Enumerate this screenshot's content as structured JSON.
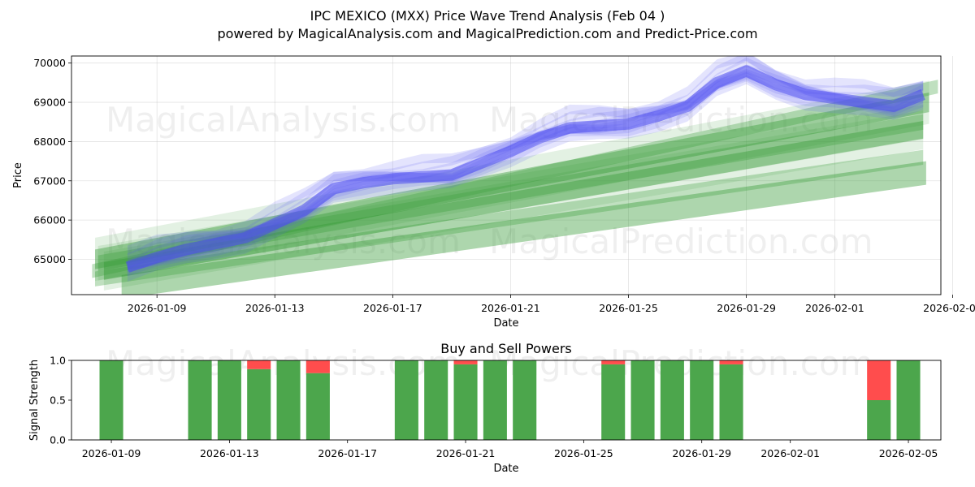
{
  "chart_data": [
    {
      "type": "area",
      "title": "IPC MEXICO (MXX) Price Wave Trend Analysis (Feb 04 )",
      "subtitle": "powered by MagicalAnalysis.com and MagicalPrediction.com and Predict-Price.com",
      "xlabel": "Date",
      "ylabel": "Price",
      "grid": true,
      "xlim_days": [
        -2.9,
        26.6
      ],
      "ylim": [
        64100,
        70180
      ],
      "x_origin": "2026-01-09",
      "x_ticks": [
        {
          "label": "2026-01-09",
          "day": 0
        },
        {
          "label": "2026-01-13",
          "day": 4
        },
        {
          "label": "2026-01-17",
          "day": 8
        },
        {
          "label": "2026-01-21",
          "day": 12
        },
        {
          "label": "2026-01-25",
          "day": 16
        },
        {
          "label": "2026-01-29",
          "day": 20
        },
        {
          "label": "2026-02-01",
          "day": 23
        },
        {
          "label": "2026-02-05",
          "day": 27
        }
      ],
      "y_ticks": [
        65000,
        66000,
        67000,
        68000,
        69000,
        70000
      ],
      "price_series": {
        "days": [
          -1,
          0,
          1,
          2,
          3,
          4,
          5,
          6,
          7,
          8,
          9,
          10,
          11,
          12,
          13,
          14,
          15,
          16,
          17,
          18,
          19,
          20,
          21,
          22,
          23,
          24,
          25,
          26
        ],
        "values": [
          64800,
          65050,
          65250,
          65400,
          65550,
          65900,
          66250,
          66800,
          66950,
          67050,
          67100,
          67150,
          67450,
          67750,
          68100,
          68350,
          68400,
          68450,
          68650,
          68900,
          69500,
          69800,
          69450,
          69200,
          69100,
          69000,
          68900,
          69200
        ]
      },
      "trend_bands": [
        {
          "start_day": -2.1,
          "start": 65000,
          "end_day": 26.2,
          "end": 69000,
          "width": 500
        },
        {
          "start_day": -2.0,
          "start": 64900,
          "end_day": 26.0,
          "end": 68500,
          "width": 400
        },
        {
          "start_day": -1.8,
          "start": 64700,
          "end_day": 26.0,
          "end": 68300,
          "width": 450
        },
        {
          "start_day": -2.1,
          "start": 64500,
          "end_day": 26.0,
          "end": 67600,
          "width": 380
        },
        {
          "start_day": -1.2,
          "start": 64300,
          "end_day": 26.1,
          "end": 67200,
          "width": 600
        },
        {
          "start_day": -2.2,
          "start": 64700,
          "end_day": 26.5,
          "end": 69400,
          "width": 350
        }
      ],
      "watermarks": [
        "MagicalAnalysis.com",
        "MagicalPrediction.com",
        "MagicalAnalysis.com",
        "MagicalPrediction.com"
      ]
    },
    {
      "type": "bar",
      "title": "Buy and Sell Powers",
      "xlabel": "Date",
      "ylabel": "Signal Strength",
      "ylim": [
        0,
        1.0
      ],
      "y_ticks": [
        "0.0",
        "0.5",
        "1.0"
      ],
      "xlim_days": [
        -1.35,
        28.1
      ],
      "x_ticks": [
        {
          "label": "2026-01-09",
          "day": 0
        },
        {
          "label": "2026-01-13",
          "day": 4
        },
        {
          "label": "2026-01-17",
          "day": 8
        },
        {
          "label": "2026-01-21",
          "day": 12
        },
        {
          "label": "2026-01-25",
          "day": 16
        },
        {
          "label": "2026-01-29",
          "day": 20
        },
        {
          "label": "2026-02-01",
          "day": 23
        },
        {
          "label": "2026-02-05",
          "day": 27
        }
      ],
      "buy_color": "#4ca64c",
      "sell_color": "#ff4d4d",
      "bars": [
        {
          "day": 0,
          "buy": 1.0,
          "sell": 0.0
        },
        {
          "day": 3,
          "buy": 1.0,
          "sell": 0.0
        },
        {
          "day": 4,
          "buy": 1.0,
          "sell": 0.0
        },
        {
          "day": 5,
          "buy": 0.89,
          "sell": 0.11
        },
        {
          "day": 6,
          "buy": 1.0,
          "sell": 0.0
        },
        {
          "day": 7,
          "buy": 0.84,
          "sell": 0.16
        },
        {
          "day": 10,
          "buy": 1.0,
          "sell": 0.0
        },
        {
          "day": 11,
          "buy": 1.0,
          "sell": 0.0
        },
        {
          "day": 12,
          "buy": 0.95,
          "sell": 0.05
        },
        {
          "day": 13,
          "buy": 1.0,
          "sell": 0.0
        },
        {
          "day": 14,
          "buy": 1.0,
          "sell": 0.0
        },
        {
          "day": 17,
          "buy": 0.95,
          "sell": 0.05
        },
        {
          "day": 18,
          "buy": 1.0,
          "sell": 0.0
        },
        {
          "day": 19,
          "buy": 1.0,
          "sell": 0.0
        },
        {
          "day": 20,
          "buy": 1.0,
          "sell": 0.0
        },
        {
          "day": 21,
          "buy": 0.95,
          "sell": 0.05
        },
        {
          "day": 26,
          "buy": 0.5,
          "sell": 0.5
        },
        {
          "day": 27,
          "buy": 1.0,
          "sell": 0.0
        }
      ],
      "watermarks": [
        "MagicalAnalysis.com",
        "MagicalPrediction.com"
      ]
    }
  ]
}
